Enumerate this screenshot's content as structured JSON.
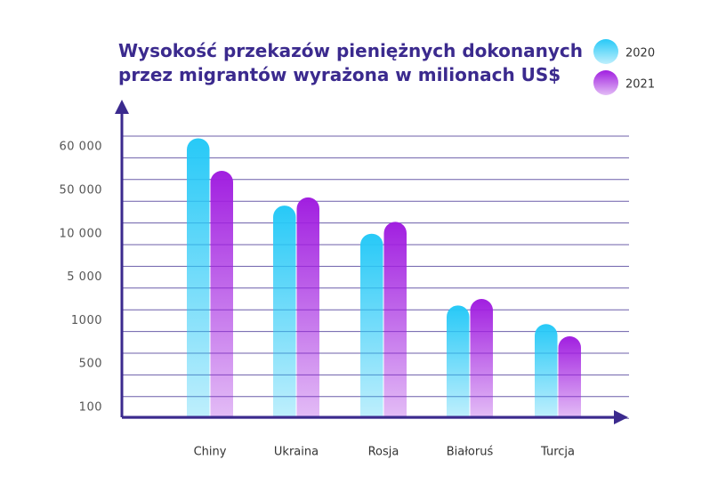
{
  "chart_data": {
    "type": "bar",
    "title": [
      "Wysokość przekazów pieniężnych dokonanych",
      "przez migrantów wyrażona w milionach US$"
    ],
    "categories": [
      "Chiny",
      "Ukraina",
      "Rosja",
      "Białoruś",
      "Turcja"
    ],
    "series": [
      {
        "name": "2020",
        "color": "#27c9f7",
        "values": [
          62000,
          36000,
          10100,
          2400,
          960
        ]
      },
      {
        "name": "2021",
        "color": "#a11fe0",
        "values": [
          54500,
          43500,
          21000,
          3000,
          820
        ]
      }
    ],
    "ylim": [
      0,
      70000
    ],
    "yticks": [
      100,
      500,
      1000,
      {
        "value": 5000,
        "label": "5 000"
      },
      {
        "value": 10000,
        "label": "10 000"
      },
      {
        "value": 50000,
        "label": "50 000"
      },
      {
        "value": 60000,
        "label": "60 000"
      }
    ],
    "grid": true,
    "legend": "top-right"
  }
}
